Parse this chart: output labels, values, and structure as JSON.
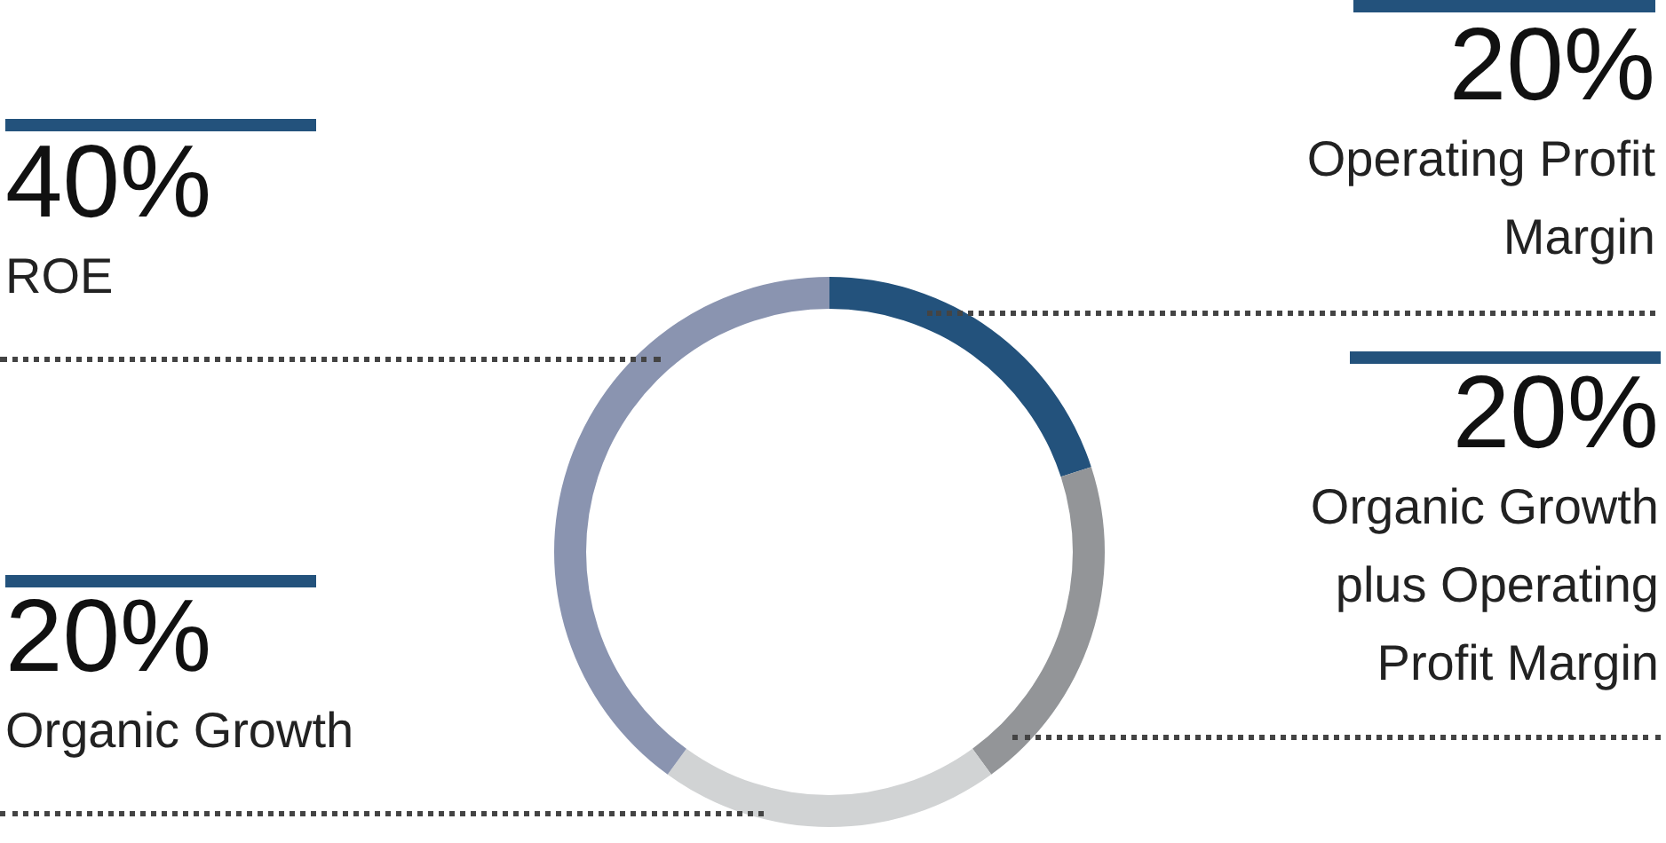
{
  "chart_data": {
    "type": "donut",
    "categories": [
      "Operating Profit Margin",
      "Organic Growth plus Operating Profit Margin",
      "Organic Growth",
      "ROE"
    ],
    "values": [
      20,
      20,
      20,
      40
    ],
    "value_labels": [
      "20%",
      "20%",
      "20%",
      "40%"
    ],
    "colors": [
      "#23527c",
      "#939598",
      "#d1d3d4",
      "#8a94b0"
    ]
  }
}
